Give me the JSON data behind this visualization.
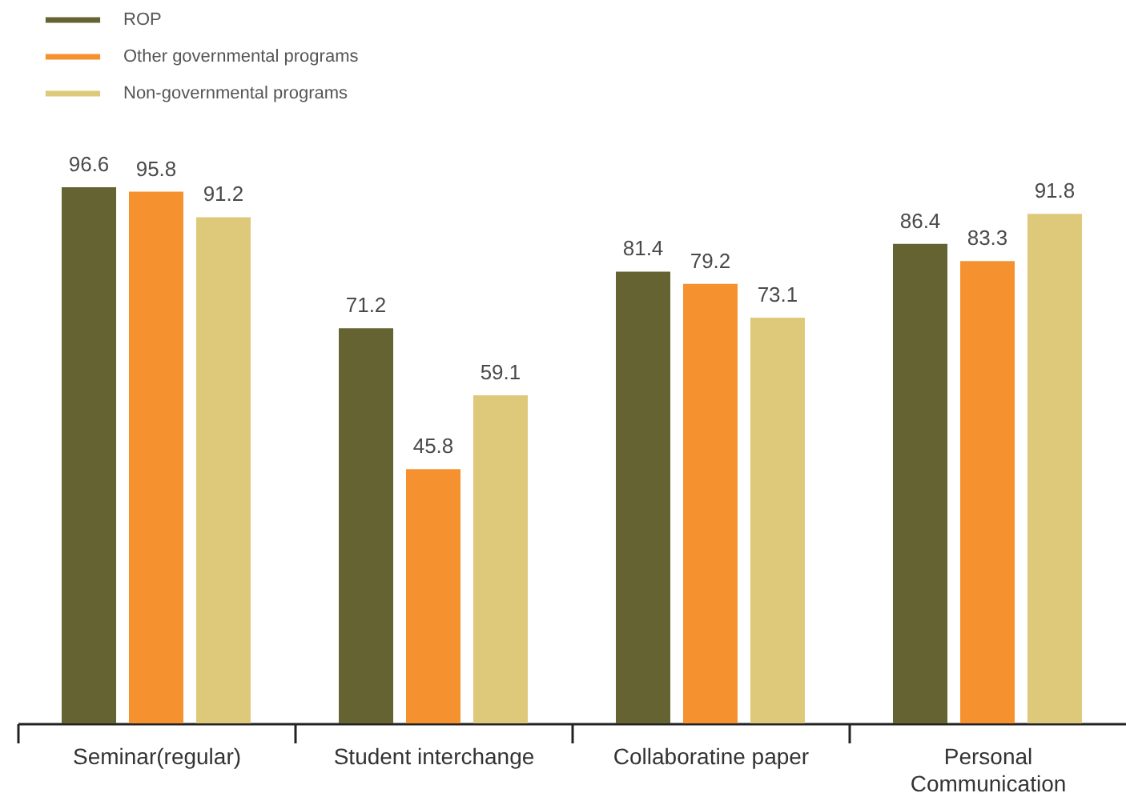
{
  "chart_data": {
    "type": "bar",
    "categories": [
      "Seminar(regular)",
      "Student interchange",
      "Collaboratine paper",
      "Personal Communication"
    ],
    "series": [
      {
        "name": "ROP",
        "color": "#646331",
        "values": [
          96.6,
          71.2,
          81.4,
          86.4
        ]
      },
      {
        "name": "Other governmental programs",
        "color": "#f5922f",
        "values": [
          95.8,
          45.8,
          79.2,
          83.3
        ]
      },
      {
        "name": "Non-governmental programs",
        "color": "#dec97a",
        "values": [
          91.2,
          59.1,
          73.1,
          91.8
        ]
      }
    ],
    "data_labels": true,
    "legend": "top left"
  }
}
